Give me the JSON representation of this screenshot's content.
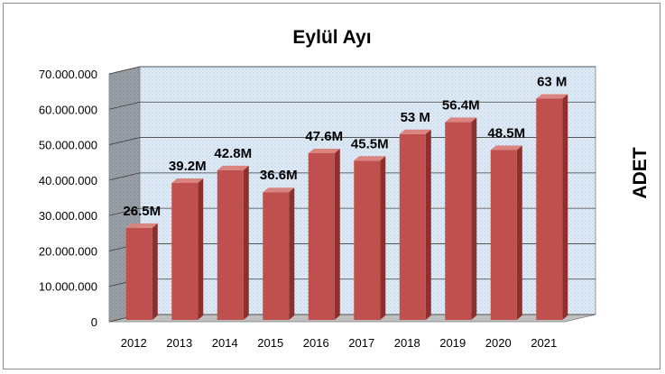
{
  "chart_data": {
    "type": "bar",
    "title": "Eylül Ayı",
    "xlabel": "",
    "ylabel": "ADET",
    "ylim": [
      0,
      70000000
    ],
    "yticks": [
      0,
      10000000,
      20000000,
      30000000,
      40000000,
      50000000,
      60000000,
      70000000
    ],
    "ytick_labels": [
      "0",
      "10.000.000",
      "20.000.000",
      "30.000.000",
      "40.000.000",
      "50.000.000",
      "60.000.000",
      "70.000.000"
    ],
    "categories": [
      "2012",
      "2013",
      "2014",
      "2015",
      "2016",
      "2017",
      "2018",
      "2019",
      "2020",
      "2021"
    ],
    "values": [
      26500000,
      39200000,
      42800000,
      36600000,
      47600000,
      45500000,
      53000000,
      56400000,
      48500000,
      63000000
    ],
    "data_labels": [
      "26.5M",
      "39.2M",
      "42.8M",
      "36.6M",
      "47.6M",
      "45.5M",
      "53 M",
      "56.4M",
      "48.5M",
      "63 M"
    ],
    "grid": true,
    "legend": "none",
    "style": "3d-column",
    "colors": {
      "bar_front": "#c0504d",
      "bar_side": "#8c2f2d",
      "bar_top": "#d9847f",
      "grid": "#404040",
      "wall": "#dce9f5",
      "wall_side": "#8a8f96",
      "floor": "#bfbfbf"
    }
  }
}
